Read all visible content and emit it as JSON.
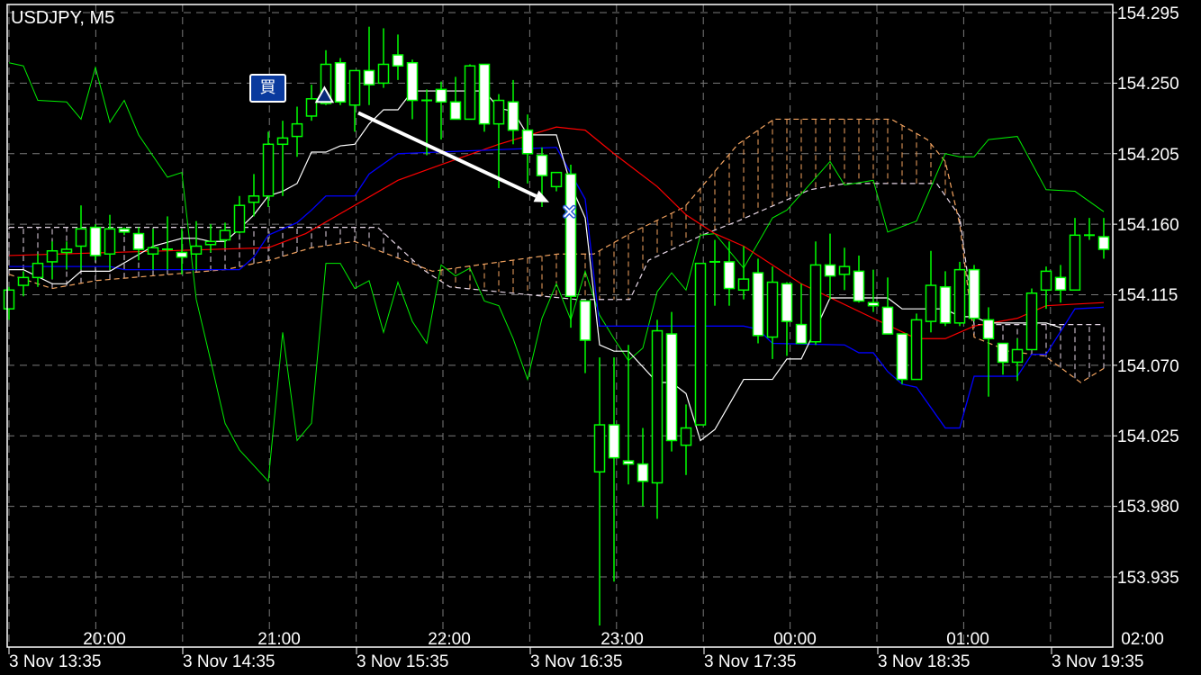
{
  "header": {
    "title": "USDJPY, M5"
  },
  "buy_label": "買",
  "colors": {
    "background": "#000000",
    "candle_outline": "#00ff00",
    "bear_fill": "#ffffff",
    "bull_fill": "#000000",
    "grid": "#7a7a7a",
    "white_line": "#ffffff",
    "blue_line": "#0000ff",
    "red_line": "#ff0000",
    "green_line": "#00ee00",
    "orange_dashed": "#f4a460",
    "light_dashed": "#e6d6e6",
    "marker_navy": "#0a2a7a"
  },
  "chart_data": {
    "type": "candlestick",
    "title": "USDJPY, M5",
    "grid": true,
    "ylim": [
      153.91,
      154.305
    ],
    "y_ticks": [
      "154.295",
      "154.250",
      "154.205",
      "154.160",
      "154.115",
      "154.070",
      "154.025",
      "153.980",
      "153.935"
    ],
    "x_ticks_top": [
      "20:00",
      "21:00",
      "22:00",
      "23:00",
      "00:00",
      "01:00",
      "02:00"
    ],
    "x_ticks_bottom": [
      "3 Nov 13:35",
      "3 Nov 14:35",
      "3 Nov 15:35",
      "3 Nov 16:35",
      "3 Nov 17:35",
      "3 Nov 18:35",
      "3 Nov 19:35"
    ],
    "candle_fields": [
      "open",
      "high",
      "low",
      "close"
    ],
    "candles": [
      [
        154.106,
        154.12,
        154.099,
        154.118
      ],
      [
        154.121,
        154.13,
        154.114,
        154.126
      ],
      [
        154.126,
        154.141,
        154.12,
        154.135
      ],
      [
        154.136,
        154.149,
        154.125,
        154.143
      ],
      [
        154.142,
        154.149,
        154.131,
        154.144
      ],
      [
        154.146,
        154.172,
        154.131,
        154.157
      ],
      [
        154.158,
        154.16,
        154.137,
        154.14
      ],
      [
        154.141,
        154.166,
        154.131,
        154.157
      ],
      [
        154.157,
        154.158,
        154.153,
        154.155
      ],
      [
        154.154,
        154.158,
        154.137,
        154.144
      ],
      [
        154.141,
        154.157,
        154.131,
        154.145
      ],
      [
        154.144,
        154.165,
        154.131,
        154.144
      ],
      [
        154.142,
        154.157,
        154.128,
        154.139
      ],
      [
        154.141,
        154.162,
        154.131,
        154.146
      ],
      [
        154.147,
        154.16,
        154.142,
        154.149
      ],
      [
        154.15,
        154.161,
        154.145,
        154.156
      ],
      [
        154.155,
        154.178,
        154.154,
        154.172
      ],
      [
        154.174,
        154.192,
        154.165,
        154.178
      ],
      [
        154.178,
        154.219,
        154.171,
        154.211
      ],
      [
        154.211,
        154.226,
        154.178,
        154.215
      ],
      [
        154.216,
        154.235,
        154.203,
        154.224
      ],
      [
        154.229,
        154.249,
        154.226,
        154.24
      ],
      [
        154.237,
        154.271,
        154.236,
        154.262
      ],
      [
        154.263,
        154.266,
        154.236,
        154.238
      ],
      [
        154.236,
        154.258,
        154.219,
        154.258
      ],
      [
        154.258,
        154.286,
        154.236,
        154.249
      ],
      [
        154.25,
        154.285,
        154.247,
        154.262
      ],
      [
        154.268,
        154.281,
        154.252,
        154.261
      ],
      [
        154.263,
        154.265,
        154.227,
        154.239
      ],
      [
        154.239,
        154.246,
        154.204,
        154.239
      ],
      [
        154.246,
        154.251,
        154.214,
        154.238
      ],
      [
        154.238,
        154.254,
        154.227,
        154.227
      ],
      [
        154.227,
        154.262,
        154.227,
        154.261
      ],
      [
        154.262,
        154.262,
        154.219,
        154.224
      ],
      [
        154.224,
        154.243,
        154.183,
        154.239
      ],
      [
        154.238,
        154.252,
        154.211,
        154.22
      ],
      [
        154.22,
        154.23,
        154.186,
        154.205
      ],
      [
        154.204,
        154.209,
        154.171,
        154.191
      ],
      [
        154.184,
        154.193,
        154.181,
        154.193
      ],
      [
        154.192,
        154.198,
        154.094,
        154.114
      ],
      [
        154.111,
        154.111,
        154.065,
        154.086
      ],
      [
        154.002,
        154.075,
        153.904,
        154.032
      ],
      [
        154.032,
        154.075,
        153.932,
        154.011
      ],
      [
        154.009,
        154.083,
        153.994,
        154.007
      ],
      [
        154.007,
        154.03,
        153.98,
        153.996
      ],
      [
        153.995,
        154.099,
        153.972,
        154.092
      ],
      [
        154.09,
        154.104,
        154.015,
        154.022
      ],
      [
        154.019,
        154.045,
        154.0,
        154.03
      ],
      [
        154.032,
        154.135,
        154.032,
        154.135
      ],
      [
        154.136,
        154.15,
        154.108,
        154.136
      ],
      [
        154.136,
        154.149,
        154.108,
        154.119
      ],
      [
        154.118,
        154.146,
        154.112,
        154.125
      ],
      [
        154.129,
        154.138,
        154.084,
        154.089
      ],
      [
        154.088,
        154.133,
        154.074,
        154.123
      ],
      [
        154.122,
        154.123,
        154.076,
        154.098
      ],
      [
        154.096,
        154.122,
        154.084,
        154.084
      ],
      [
        154.085,
        154.149,
        154.083,
        154.134
      ],
      [
        154.134,
        154.154,
        154.112,
        154.127
      ],
      [
        154.128,
        154.145,
        154.118,
        154.133
      ],
      [
        154.13,
        154.14,
        154.11,
        154.111
      ],
      [
        154.11,
        154.131,
        154.104,
        154.108
      ],
      [
        154.107,
        154.126,
        154.09,
        154.09
      ],
      [
        154.09,
        154.09,
        154.058,
        154.061
      ],
      [
        154.061,
        154.103,
        154.061,
        154.099
      ],
      [
        154.098,
        154.143,
        154.091,
        154.121
      ],
      [
        154.12,
        154.13,
        154.095,
        154.097
      ],
      [
        154.097,
        154.136,
        154.095,
        154.131
      ],
      [
        154.131,
        154.134,
        154.098,
        154.1
      ],
      [
        154.099,
        154.107,
        154.05,
        154.087
      ],
      [
        154.084,
        154.084,
        154.064,
        154.072
      ],
      [
        154.072,
        154.087,
        154.06,
        154.08
      ],
      [
        154.08,
        154.119,
        154.08,
        154.116
      ],
      [
        154.118,
        154.133,
        154.106,
        154.13
      ],
      [
        154.126,
        154.134,
        154.11,
        154.118
      ],
      [
        154.118,
        154.164,
        154.118,
        154.153
      ],
      [
        154.153,
        154.164,
        154.15,
        154.153
      ],
      [
        154.152,
        154.164,
        154.138,
        154.144
      ]
    ],
    "lines": {
      "white_line": [
        [
          0,
          154.131
        ],
        [
          1,
          154.131
        ],
        [
          3,
          154.122
        ],
        [
          4,
          154.122
        ],
        [
          5,
          154.13
        ],
        [
          7,
          154.13
        ],
        [
          10,
          154.146
        ],
        [
          12,
          154.151
        ],
        [
          13,
          154.151
        ],
        [
          14,
          154.149
        ],
        [
          15,
          154.149
        ],
        [
          16,
          154.157
        ],
        [
          17,
          154.166
        ],
        [
          18,
          154.178
        ],
        [
          19,
          154.181
        ],
        [
          20,
          154.186
        ],
        [
          21,
          154.206
        ],
        [
          22,
          154.206
        ],
        [
          23,
          154.21
        ],
        [
          24,
          154.211
        ],
        [
          25,
          154.224
        ],
        [
          26,
          154.233
        ],
        [
          27,
          154.233
        ],
        [
          28,
          154.245
        ],
        [
          33,
          154.245
        ],
        [
          34,
          154.234
        ],
        [
          35,
          154.232
        ],
        [
          36,
          154.217
        ],
        [
          38,
          154.217
        ],
        [
          39,
          154.185
        ],
        [
          40,
          154.164
        ],
        [
          41,
          154.083
        ],
        [
          42,
          154.079
        ],
        [
          43,
          154.079
        ],
        [
          45,
          154.059
        ],
        [
          46,
          154.059
        ],
        [
          47,
          154.052
        ],
        [
          48,
          154.022
        ],
        [
          49,
          154.029
        ],
        [
          50,
          154.045
        ],
        [
          51,
          154.061
        ],
        [
          53,
          154.061
        ],
        [
          54,
          154.074
        ],
        [
          55,
          154.074
        ],
        [
          56,
          154.093
        ],
        [
          57,
          154.113
        ],
        [
          61,
          154.113
        ],
        [
          62,
          154.106
        ],
        [
          65,
          154.106
        ],
        [
          66,
          154.101
        ],
        [
          67,
          154.101
        ],
        [
          68,
          154.097
        ],
        [
          72,
          154.097
        ],
        [
          73,
          154.094
        ]
      ],
      "blue_line": [
        [
          0,
          154.133
        ],
        [
          7,
          154.133
        ],
        [
          8,
          154.131
        ],
        [
          16,
          154.131
        ],
        [
          17,
          154.139
        ],
        [
          18,
          154.153
        ],
        [
          20,
          154.161
        ],
        [
          21,
          154.169
        ],
        [
          22,
          154.178
        ],
        [
          24,
          154.178
        ],
        [
          25,
          154.192
        ],
        [
          27,
          154.205
        ],
        [
          38,
          154.209
        ],
        [
          40,
          154.176
        ],
        [
          41,
          154.095
        ],
        [
          51,
          154.095
        ],
        [
          52,
          154.093
        ],
        [
          53,
          154.084
        ],
        [
          58,
          154.083
        ],
        [
          59,
          154.078
        ],
        [
          60,
          154.078
        ],
        [
          61,
          154.066
        ],
        [
          62,
          154.058
        ],
        [
          63,
          154.056
        ],
        [
          65,
          154.03
        ],
        [
          66,
          154.03
        ],
        [
          67,
          154.063
        ],
        [
          70,
          154.063
        ],
        [
          71,
          154.077
        ],
        [
          72,
          154.077
        ],
        [
          74,
          154.106
        ],
        [
          76,
          154.107
        ]
      ],
      "red_line": [
        [
          0,
          154.14
        ],
        [
          18,
          154.145
        ],
        [
          20.6,
          154.154
        ],
        [
          27,
          154.188
        ],
        [
          30,
          154.198
        ],
        [
          34,
          154.211
        ],
        [
          38,
          154.222
        ],
        [
          40,
          154.22
        ],
        [
          42,
          154.205
        ],
        [
          45,
          154.184
        ],
        [
          47,
          154.166
        ],
        [
          49,
          154.154
        ],
        [
          51,
          154.146
        ],
        [
          55,
          154.122
        ],
        [
          60,
          154.1
        ],
        [
          63,
          154.087
        ],
        [
          65,
          154.087
        ],
        [
          67,
          154.095
        ],
        [
          70,
          154.1
        ],
        [
          72,
          154.108
        ],
        [
          76,
          154.11
        ]
      ],
      "green_line": [
        [
          0,
          154.263
        ],
        [
          1,
          154.261
        ],
        [
          2,
          154.239
        ],
        [
          4,
          154.238
        ],
        [
          5,
          154.227
        ],
        [
          6,
          154.26
        ],
        [
          7,
          154.225
        ],
        [
          8,
          154.239
        ],
        [
          9,
          154.217
        ],
        [
          11,
          154.19
        ],
        [
          12,
          154.193
        ],
        [
          13,
          154.112
        ],
        [
          14,
          154.073
        ],
        [
          15,
          154.033
        ],
        [
          16,
          154.016
        ],
        [
          18,
          153.996
        ],
        [
          19,
          154.091
        ],
        [
          20,
          154.022
        ],
        [
          21,
          154.033
        ],
        [
          22,
          154.135
        ],
        [
          23,
          154.135
        ],
        [
          24,
          154.119
        ],
        [
          25,
          154.124
        ],
        [
          26,
          154.091
        ],
        [
          27,
          154.123
        ],
        [
          28,
          154.098
        ],
        [
          29,
          154.084
        ],
        [
          30,
          154.134
        ],
        [
          31,
          154.127
        ],
        [
          32,
          154.132
        ],
        [
          33,
          154.111
        ],
        [
          34,
          154.108
        ],
        [
          35,
          154.087
        ],
        [
          36,
          154.061
        ],
        [
          37,
          154.1
        ],
        [
          38,
          154.122
        ],
        [
          39,
          154.099
        ],
        [
          40,
          154.13
        ],
        [
          41,
          154.102
        ],
        [
          42,
          154.087
        ],
        [
          43,
          154.073
        ],
        [
          44,
          154.081
        ],
        [
          45,
          154.117
        ],
        [
          46,
          154.129
        ],
        [
          47,
          154.118
        ],
        [
          48,
          154.153
        ],
        [
          49,
          154.154
        ],
        [
          51,
          154.132
        ],
        [
          53,
          154.164
        ],
        [
          54,
          154.169
        ],
        [
          57,
          154.2
        ],
        [
          58,
          154.185
        ],
        [
          60,
          154.188
        ],
        [
          61,
          154.155
        ],
        [
          63,
          154.162
        ],
        [
          65,
          154.205
        ],
        [
          66,
          154.203
        ],
        [
          67,
          154.203
        ],
        [
          68,
          154.214
        ],
        [
          70,
          154.216
        ],
        [
          72,
          154.182
        ],
        [
          74,
          154.181
        ],
        [
          76,
          154.168
        ]
      ],
      "orange_dashed": [
        [
          0,
          154.128
        ],
        [
          3,
          154.119
        ],
        [
          6,
          154.124
        ],
        [
          15,
          154.131
        ],
        [
          18.1,
          154.137
        ],
        [
          21,
          154.145
        ],
        [
          24,
          154.149
        ],
        [
          29.4,
          154.13
        ],
        [
          38.1,
          154.141
        ],
        [
          40.6,
          154.141
        ],
        [
          43.1,
          154.154
        ],
        [
          46.9,
          154.171
        ],
        [
          48.75,
          154.191
        ],
        [
          50.6,
          154.211
        ],
        [
          53.1,
          154.227
        ],
        [
          61.25,
          154.227
        ],
        [
          63.75,
          154.214
        ],
        [
          65,
          154.2
        ],
        [
          66,
          154.16
        ],
        [
          67,
          154.088
        ],
        [
          69.4,
          154.079
        ],
        [
          71.9,
          154.076
        ],
        [
          74.4,
          154.059
        ],
        [
          76,
          154.068
        ]
      ],
      "light_dashed": [
        [
          0,
          154.158
        ],
        [
          25.6,
          154.158
        ],
        [
          28.75,
          154.131
        ],
        [
          30.6,
          154.12
        ],
        [
          39.4,
          154.112
        ],
        [
          43.1,
          154.112
        ],
        [
          44.4,
          154.137
        ],
        [
          48.1,
          154.153
        ],
        [
          50.6,
          154.162
        ],
        [
          55.6,
          154.182
        ],
        [
          58.1,
          154.186
        ],
        [
          64.4,
          154.186
        ],
        [
          66,
          154.165
        ],
        [
          67,
          154.096
        ],
        [
          76,
          154.096
        ]
      ]
    },
    "annotations": {
      "buy_triangle": [
        21.9,
        154.242
      ],
      "close_cross": [
        38.9,
        154.168
      ],
      "arrow": [
        [
          24.25,
          154.231
        ],
        [
          37.5,
          154.174
        ]
      ]
    }
  }
}
